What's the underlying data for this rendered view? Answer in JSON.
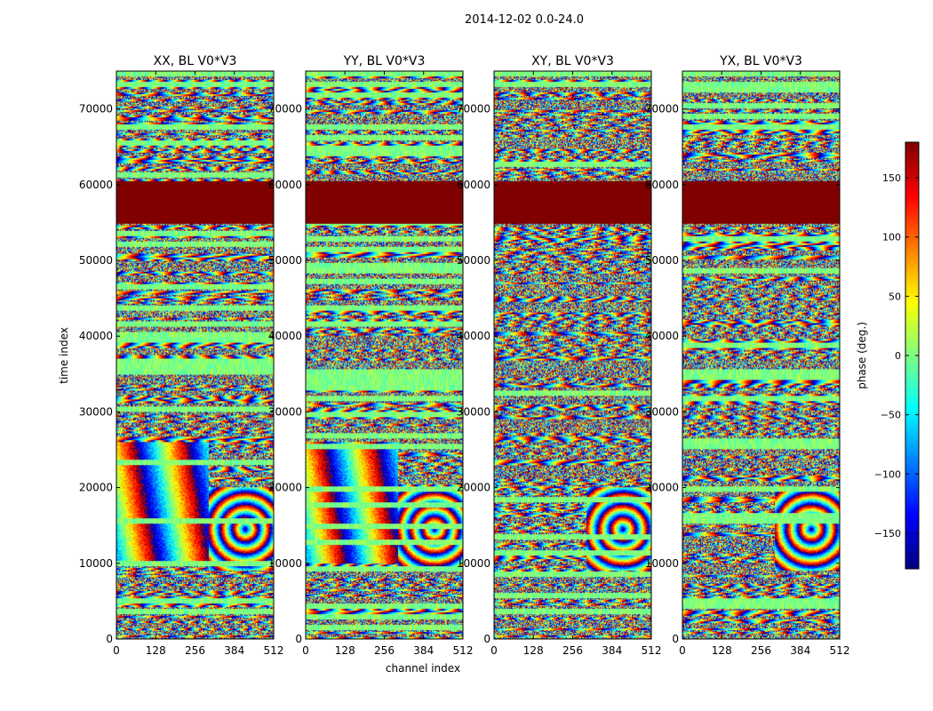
{
  "chart_data": {
    "type": "heatmap",
    "title": "2014-12-02 0.0-24.0",
    "xlabel": "channel index",
    "ylabel": "time index",
    "xlim": [
      0,
      512
    ],
    "ylim": [
      0,
      75000
    ],
    "x_ticks": [
      0,
      128,
      256,
      384,
      512
    ],
    "x_tick_labels": [
      "0",
      "128",
      "256",
      "384",
      "512"
    ],
    "y_ticks": [
      0,
      10000,
      20000,
      30000,
      40000,
      50000,
      60000,
      70000
    ],
    "y_tick_labels": [
      "0",
      "10000",
      "20000",
      "30000",
      "40000",
      "50000",
      "60000",
      "70000"
    ],
    "panels": [
      {
        "title": "XX, BL V0*V3",
        "pol": "XX"
      },
      {
        "title": "YY, BL V0*V3",
        "pol": "YY"
      },
      {
        "title": "XY, BL V0*V3",
        "pol": "XY"
      },
      {
        "title": "YX, BL V0*V3",
        "pol": "YX"
      }
    ],
    "flagged_rows": [
      [
        54800,
        60500
      ]
    ],
    "flag_value": 180,
    "colorbar": {
      "label": "phase (deg.)",
      "colormap": "jet",
      "range": [
        -180,
        180
      ],
      "ticks": [
        150,
        100,
        50,
        0,
        -50,
        -100,
        -150
      ],
      "tick_labels": [
        "150",
        "100",
        "50",
        "0",
        "−50",
        "−100",
        "−150"
      ]
    }
  }
}
